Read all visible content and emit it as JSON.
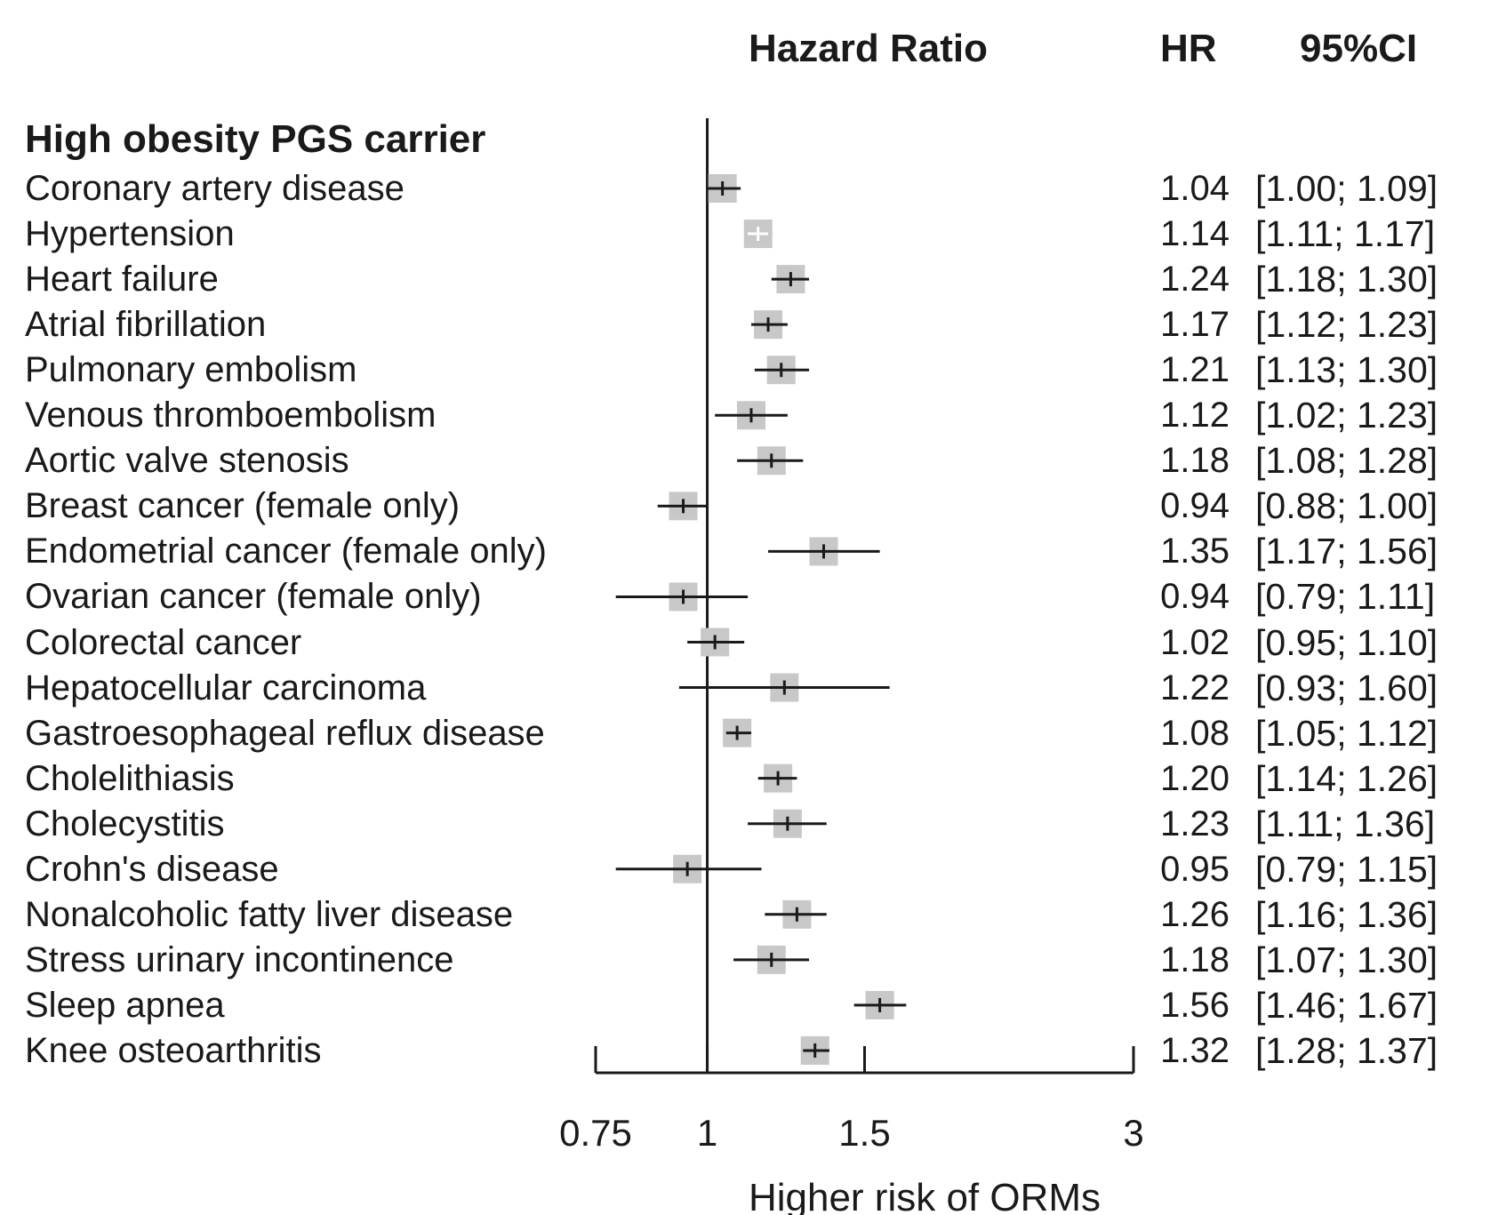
{
  "header": {
    "plot_title": "Hazard Ratio",
    "hr_col": "HR",
    "ci_col": "95%CI"
  },
  "group_title": "High obesity PGS carrier",
  "chart_data": {
    "type": "forest",
    "title": "Hazard Ratio",
    "xlabel": "Higher risk of ORMs",
    "x_scale": "log",
    "xlim": [
      0.75,
      3
    ],
    "x_ticks": [
      0.75,
      1,
      1.5,
      3
    ],
    "x_tick_labels": [
      "0.75",
      "1",
      "1.5",
      "3"
    ],
    "reference_line": 1,
    "colors": {
      "box": "#c8c8c8",
      "line": "#1a1a1a"
    },
    "rows": [
      {
        "label": "Coronary artery disease",
        "hr": 1.04,
        "lo": 1.0,
        "hi": 1.09,
        "hr_text": "1.04",
        "ci_text": "[1.00; 1.09]"
      },
      {
        "label": "Hypertension",
        "hr": 1.14,
        "lo": 1.11,
        "hi": 1.17,
        "hr_text": "1.14",
        "ci_text": "[1.11; 1.17]"
      },
      {
        "label": "Heart failure",
        "hr": 1.24,
        "lo": 1.18,
        "hi": 1.3,
        "hr_text": "1.24",
        "ci_text": "[1.18; 1.30]"
      },
      {
        "label": "Atrial fibrillation",
        "hr": 1.17,
        "lo": 1.12,
        "hi": 1.23,
        "hr_text": "1.17",
        "ci_text": "[1.12; 1.23]"
      },
      {
        "label": "Pulmonary embolism",
        "hr": 1.21,
        "lo": 1.13,
        "hi": 1.3,
        "hr_text": "1.21",
        "ci_text": "[1.13; 1.30]"
      },
      {
        "label": "Venous thromboembolism",
        "hr": 1.12,
        "lo": 1.02,
        "hi": 1.23,
        "hr_text": "1.12",
        "ci_text": "[1.02; 1.23]"
      },
      {
        "label": "Aortic valve stenosis",
        "hr": 1.18,
        "lo": 1.08,
        "hi": 1.28,
        "hr_text": "1.18",
        "ci_text": "[1.08; 1.28]"
      },
      {
        "label": "Breast cancer (female only)",
        "hr": 0.94,
        "lo": 0.88,
        "hi": 1.0,
        "hr_text": "0.94",
        "ci_text": "[0.88; 1.00]"
      },
      {
        "label": "Endometrial cancer (female only)",
        "hr": 1.35,
        "lo": 1.17,
        "hi": 1.56,
        "hr_text": "1.35",
        "ci_text": "[1.17; 1.56]"
      },
      {
        "label": "Ovarian cancer (female only)",
        "hr": 0.94,
        "lo": 0.79,
        "hi": 1.11,
        "hr_text": "0.94",
        "ci_text": "[0.79; 1.11]"
      },
      {
        "label": "Colorectal cancer",
        "hr": 1.02,
        "lo": 0.95,
        "hi": 1.1,
        "hr_text": "1.02",
        "ci_text": "[0.95; 1.10]"
      },
      {
        "label": "Hepatocellular carcinoma",
        "hr": 1.22,
        "lo": 0.93,
        "hi": 1.6,
        "hr_text": "1.22",
        "ci_text": "[0.93; 1.60]"
      },
      {
        "label": "Gastroesophageal reflux disease",
        "hr": 1.08,
        "lo": 1.05,
        "hi": 1.12,
        "hr_text": "1.08",
        "ci_text": "[1.05; 1.12]"
      },
      {
        "label": "Cholelithiasis",
        "hr": 1.2,
        "lo": 1.14,
        "hi": 1.26,
        "hr_text": "1.20",
        "ci_text": "[1.14; 1.26]"
      },
      {
        "label": "Cholecystitis",
        "hr": 1.23,
        "lo": 1.11,
        "hi": 1.36,
        "hr_text": "1.23",
        "ci_text": "[1.11; 1.36]"
      },
      {
        "label": "Crohn's disease",
        "hr": 0.95,
        "lo": 0.79,
        "hi": 1.15,
        "hr_text": "0.95",
        "ci_text": "[0.79; 1.15]"
      },
      {
        "label": "Nonalcoholic fatty liver disease",
        "hr": 1.26,
        "lo": 1.16,
        "hi": 1.36,
        "hr_text": "1.26",
        "ci_text": "[1.16; 1.36]"
      },
      {
        "label": "Stress urinary incontinence",
        "hr": 1.18,
        "lo": 1.07,
        "hi": 1.3,
        "hr_text": "1.18",
        "ci_text": "[1.07; 1.30]"
      },
      {
        "label": "Sleep apnea",
        "hr": 1.56,
        "lo": 1.46,
        "hi": 1.67,
        "hr_text": "1.56",
        "ci_text": "[1.46; 1.67]"
      },
      {
        "label": "Knee osteoarthritis",
        "hr": 1.32,
        "lo": 1.28,
        "hi": 1.37,
        "hr_text": "1.32",
        "ci_text": "[1.28; 1.37]"
      }
    ]
  }
}
